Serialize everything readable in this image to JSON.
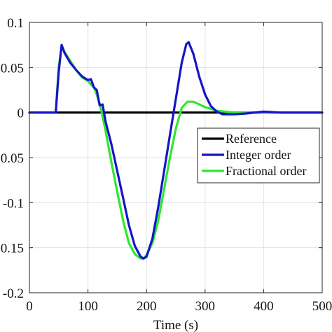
{
  "chart_data": {
    "type": "line",
    "title": "",
    "xlabel": "Time (s)",
    "ylabel": "",
    "xlim": [
      0,
      500
    ],
    "ylim": [
      -0.2,
      0.1
    ],
    "xticks": [
      0,
      100,
      200,
      300,
      400,
      500
    ],
    "xtick_labels": [
      "0",
      "100",
      "200",
      "300",
      "400",
      "500"
    ],
    "yticks": [
      0.1,
      0.05,
      0,
      -0.05,
      -0.1,
      -0.15,
      -0.2
    ],
    "ytick_labels": [
      "0.1",
      "0.05",
      "0",
      "-0.05",
      "-0.1",
      "-0.15",
      "-0.2"
    ],
    "grid": true,
    "legend_position": "right",
    "series": [
      {
        "name": "Reference",
        "color": "#000000",
        "x": [
          0,
          500
        ],
        "y": [
          0,
          0
        ]
      },
      {
        "name": "Integer order",
        "color": "#1515c8",
        "x": [
          0,
          45,
          50,
          55,
          60,
          70,
          80,
          90,
          100,
          105,
          110,
          115,
          120,
          125,
          130,
          140,
          150,
          160,
          170,
          180,
          190,
          195,
          200,
          210,
          220,
          230,
          240,
          250,
          260,
          268,
          272,
          280,
          290,
          300,
          310,
          320,
          330,
          350,
          370,
          400,
          430,
          460,
          500
        ],
        "y": [
          0,
          0,
          0.045,
          0.075,
          0.066,
          0.055,
          0.047,
          0.04,
          0.036,
          0.037,
          0.028,
          0.025,
          0.008,
          0.009,
          -0.01,
          -0.035,
          -0.065,
          -0.095,
          -0.125,
          -0.148,
          -0.16,
          -0.162,
          -0.16,
          -0.14,
          -0.105,
          -0.065,
          -0.025,
          0.015,
          0.055,
          0.076,
          0.078,
          0.065,
          0.04,
          0.02,
          0.007,
          0.001,
          -0.002,
          -0.002,
          -0.001,
          0.001,
          0,
          0,
          0
        ]
      },
      {
        "name": "Fractional order",
        "color": "#2ee82e",
        "x": [
          0,
          45,
          50,
          55,
          60,
          70,
          80,
          90,
          100,
          105,
          110,
          115,
          120,
          130,
          140,
          150,
          160,
          170,
          180,
          190,
          195,
          200,
          210,
          220,
          230,
          240,
          250,
          260,
          270,
          280,
          290,
          300,
          320,
          350,
          400,
          450,
          500
        ],
        "y": [
          0,
          0,
          0.05,
          0.074,
          0.067,
          0.057,
          0.047,
          0.039,
          0.035,
          0.031,
          0.028,
          0.02,
          0.01,
          -0.02,
          -0.055,
          -0.088,
          -0.12,
          -0.145,
          -0.157,
          -0.162,
          -0.162,
          -0.158,
          -0.145,
          -0.12,
          -0.085,
          -0.05,
          -0.018,
          0.005,
          0.012,
          0.012,
          0.009,
          0.006,
          0.002,
          0,
          0,
          0,
          0
        ]
      }
    ]
  }
}
